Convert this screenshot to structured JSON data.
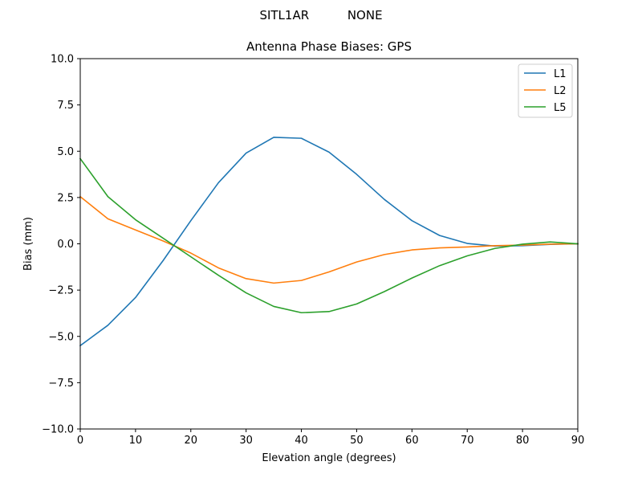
{
  "figure": {
    "suptitle_left": "SITL1AR",
    "suptitle_right": "NONE"
  },
  "chart_data": {
    "type": "line",
    "title": "Antenna Phase Biases: GPS",
    "xlabel": "Elevation angle (degrees)",
    "ylabel": "Bias (mm)",
    "xlim": [
      0,
      90
    ],
    "ylim": [
      -10,
      10
    ],
    "xticks": [
      0,
      10,
      20,
      30,
      40,
      50,
      60,
      70,
      80,
      90
    ],
    "yticks": [
      -10.0,
      -7.5,
      -5.0,
      -2.5,
      0.0,
      2.5,
      5.0,
      7.5,
      10.0
    ],
    "xtick_labels": [
      "0",
      "10",
      "20",
      "30",
      "40",
      "50",
      "60",
      "70",
      "80",
      "90"
    ],
    "ytick_labels": [
      "−10.0",
      "−7.5",
      "−5.0",
      "−2.5",
      "0.0",
      "2.5",
      "5.0",
      "7.5",
      "10.0"
    ],
    "grid": false,
    "legend_position": "top-right",
    "x": [
      0,
      5,
      10,
      15,
      20,
      25,
      30,
      35,
      40,
      45,
      50,
      55,
      60,
      65,
      70,
      75,
      80,
      85,
      90
    ],
    "series": [
      {
        "name": "L1",
        "color": "#1f77b4",
        "values": [
          -5.5,
          -4.4,
          -2.9,
          -0.9,
          1.25,
          3.3,
          4.9,
          5.75,
          5.7,
          4.95,
          3.75,
          2.4,
          1.25,
          0.45,
          0.02,
          -0.12,
          -0.1,
          -0.03,
          0.0
        ]
      },
      {
        "name": "L2",
        "color": "#ff7f0e",
        "values": [
          2.55,
          1.35,
          0.75,
          0.15,
          -0.5,
          -1.3,
          -1.88,
          -2.12,
          -1.98,
          -1.52,
          -0.98,
          -0.58,
          -0.33,
          -0.22,
          -0.17,
          -0.1,
          -0.07,
          -0.02,
          0.0
        ]
      },
      {
        "name": "L5",
        "color": "#2ca02c",
        "values": [
          4.6,
          2.55,
          1.3,
          0.3,
          -0.7,
          -1.7,
          -2.65,
          -3.38,
          -3.72,
          -3.66,
          -3.25,
          -2.58,
          -1.85,
          -1.18,
          -0.65,
          -0.25,
          -0.02,
          0.1,
          0.0
        ]
      }
    ]
  }
}
